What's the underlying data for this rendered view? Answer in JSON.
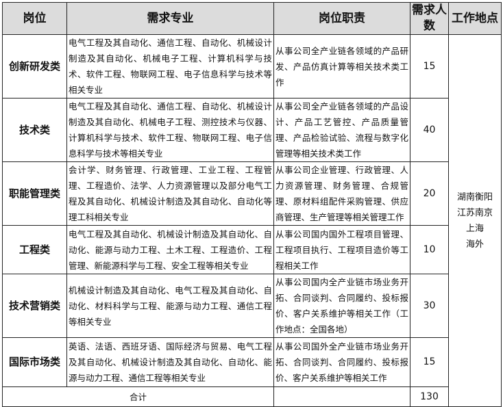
{
  "header": {
    "position": "岗位",
    "major": "需求专业",
    "duty": "岗位职责",
    "count": "需求人数",
    "location": "工作地点"
  },
  "rows": [
    {
      "position": "创新研发类",
      "major": "电气工程及其自动化、通信工程、自动化、机械设计制造及其自动化、机械电子工程、计算机科学与技术、软件工程、物联网工程、电子信息科学与技术等相关专业",
      "duty": "从事公司全产业链各领域的产品研发、产品仿真计算等相关技术类工作",
      "count": "15"
    },
    {
      "position": "技术类",
      "major": "电气工程及其自动化、通信工程、自动化、机械设计制造及其自动化、机械电子工程、测控技术与仪器、计算机科学与技术、软件工程、物联网工程、电子信息科学与技术等相关专业",
      "duty": "从事公司全产业链各领域的产品设计、产品工艺管控、产品质量管理、产品检验试验、流程与数字化管理等相关技术类工作",
      "count": "40"
    },
    {
      "position": "职能管理类",
      "major": "会计学、财务管理、行政管理、工业工程、工程管理、工程造价、法学、人力资源管理以及部分电气工程及其自动化、机械设计制造及其自动化、自动化等理工科相关专业",
      "duty": "从事公司企业管理、行政管理、人力资源管理、财务管理、合规管理、原材料组配件采购管理、供应商管理、生产管理等相关管理工作",
      "count": "20"
    },
    {
      "position": "工程类",
      "major": "电气工程及其自动化、机械设计制造及其自动化、自动化、能源与动力工程、土木工程、工程造价、工程管理、新能源科学与工程、安全工程等相关专业",
      "duty": "从事公司国内国外工程项目管理、工程项目执行、工程项目造价等工程相关工作",
      "count": "10"
    },
    {
      "position": "技术营销类",
      "major": "机械设计制造及其自动化、电气工程及其自动化、自动化、材料科学与工程、能源与动力工程、通信工程等相关专业",
      "duty": "从事公司国内全产业链市场业务开拓、合同谈判、合同履约、投标报价、客户关系维护等相关工作（工作地点：全国各地）",
      "count": "30"
    },
    {
      "position": "国际市场类",
      "major": "英语、法语、西班牙语、国际经济与贸易、电气工程及其自动化、机械设计制造及其自动化、自动化、能源与动力工程、通信工程等相关专业",
      "duty": "从事公司国外全产业链市场业务开拓、合同谈判、合同履约、投标报价、客户关系维护等相关工作",
      "count": "15"
    }
  ],
  "locations": [
    "湖南衡阳",
    "江苏南京",
    "上海",
    "海外"
  ],
  "total": {
    "label": "合计",
    "count": "130"
  }
}
